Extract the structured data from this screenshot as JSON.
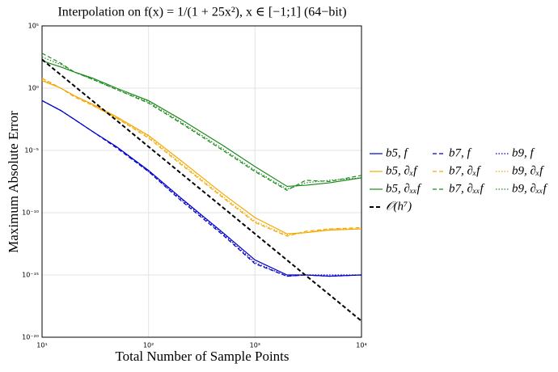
{
  "chart_data": {
    "type": "line",
    "title": "Interpolation on f(x) = 1/(1 + 25x²), x ∈ [−1;1] (64−bit)",
    "xlabel": "Total Number of Sample Points",
    "ylabel": "Maximum Absolute Error",
    "xscale": "log",
    "yscale": "log",
    "grid": true,
    "legend": "outside right",
    "xlim": [
      10,
      10000
    ],
    "xticks": [
      {
        "value": 10,
        "label": "10¹"
      },
      {
        "value": 100,
        "label": "10²"
      },
      {
        "value": 1000,
        "label": "10³"
      },
      {
        "value": 10000,
        "label": "10⁴"
      }
    ],
    "ylim": [
      1e-20,
      100000.0
    ],
    "yticks": [
      {
        "value": 1e-20,
        "label": "10⁻²⁰"
      },
      {
        "value": 1e-15,
        "label": "10⁻¹⁵"
      },
      {
        "value": 1e-10,
        "label": "10⁻¹⁰"
      },
      {
        "value": 1e-05,
        "label": "10⁻⁵"
      },
      {
        "value": 1,
        "label": "10⁰"
      },
      {
        "value": 100000.0,
        "label": "10⁵"
      }
    ],
    "x": [
      10,
      15,
      20,
      30,
      50,
      100,
      200,
      500,
      1000,
      2000,
      3000,
      5000,
      10000
    ],
    "series": [
      {
        "name": "b5, f",
        "color": "#0000cc",
        "dash": "solid",
        "width": 1.2,
        "values": [
          0.1,
          0.016,
          0.0032,
          0.00032,
          2e-05,
          2.5e-07,
          1.6e-09,
          2.5e-12,
          1.6e-14,
          1e-15,
          1e-15,
          7.9e-16,
          1e-15
        ]
      },
      {
        "name": "b5, ∂ₓf",
        "color": "#f5a800",
        "dash": "solid",
        "width": 1.2,
        "values": [
          4,
          1,
          0.25,
          0.05,
          0.005,
          0.00016,
          1.6e-06,
          3.2e-09,
          4e-11,
          2e-12,
          2.5e-12,
          4e-12,
          5e-12
        ]
      },
      {
        "name": "b5, ∂ₓₓf",
        "color": "#1a8a1a",
        "dash": "solid",
        "width": 1.2,
        "values": [
          158,
          50,
          20,
          6.3,
          1,
          0.1,
          0.0032,
          2.5e-05,
          5e-07,
          1.3e-08,
          1.6e-08,
          2.5e-08,
          6.3e-08
        ]
      },
      {
        "name": "b7, f",
        "color": "#0000cc",
        "dash": "dashed",
        "width": 1.2,
        "values": [
          0.1,
          0.016,
          0.0032,
          0.00032,
          1.6e-05,
          2e-07,
          1e-09,
          1.6e-12,
          7.9e-15,
          7.9e-16,
          1e-15,
          7.9e-16,
          1e-15
        ]
      },
      {
        "name": "b7, ∂ₓf",
        "color": "#f5a800",
        "dash": "dashed",
        "width": 1.2,
        "values": [
          6.3,
          1,
          0.2,
          0.04,
          0.004,
          0.0001,
          7.9e-07,
          1.6e-09,
          1.6e-11,
          1.3e-12,
          3.2e-12,
          5e-12,
          6.3e-12
        ]
      },
      {
        "name": "b7, ∂ₓₓf",
        "color": "#1a8a1a",
        "dash": "dashed",
        "width": 1.2,
        "values": [
          630,
          100,
          20,
          5,
          0.79,
          0.063,
          0.0016,
          1e-05,
          2e-07,
          6.3e-09,
          4e-08,
          3.2e-08,
          1e-07
        ]
      },
      {
        "name": "b9, f",
        "color": "#0000cc",
        "dash": "dotted",
        "width": 1.2,
        "values": [
          0.1,
          0.016,
          0.0032,
          0.00032,
          2e-05,
          2e-07,
          1.3e-09,
          2e-12,
          1e-14,
          7.9e-16,
          1e-15,
          1e-15,
          1e-15
        ]
      },
      {
        "name": "b9, ∂ₓf",
        "color": "#f5a800",
        "dash": "dotted",
        "width": 1.2,
        "values": [
          5,
          1,
          0.25,
          0.04,
          0.004,
          0.00013,
          1e-06,
          2e-09,
          2e-11,
          1.6e-12,
          2.5e-12,
          5e-12,
          5e-12
        ]
      },
      {
        "name": "b9, ∂ₓₓf",
        "color": "#1a8a1a",
        "dash": "dotted",
        "width": 1.2,
        "values": [
          316,
          79,
          20,
          5,
          0.79,
          0.079,
          0.002,
          1.3e-05,
          2.5e-07,
          7.9e-09,
          2.5e-08,
          4e-08,
          6.3e-08
        ]
      },
      {
        "name": "𝒪(h⁷)",
        "color": "#000000",
        "dash": "dashed",
        "width": 2,
        "values": [
          200,
          11.7,
          1.55,
          0.091,
          0.0026,
          2e-05,
          1.55e-07,
          2.6e-10,
          2e-12,
          1.55e-14,
          9.1e-16,
          2.6e-17,
          2e-19
        ]
      }
    ]
  }
}
